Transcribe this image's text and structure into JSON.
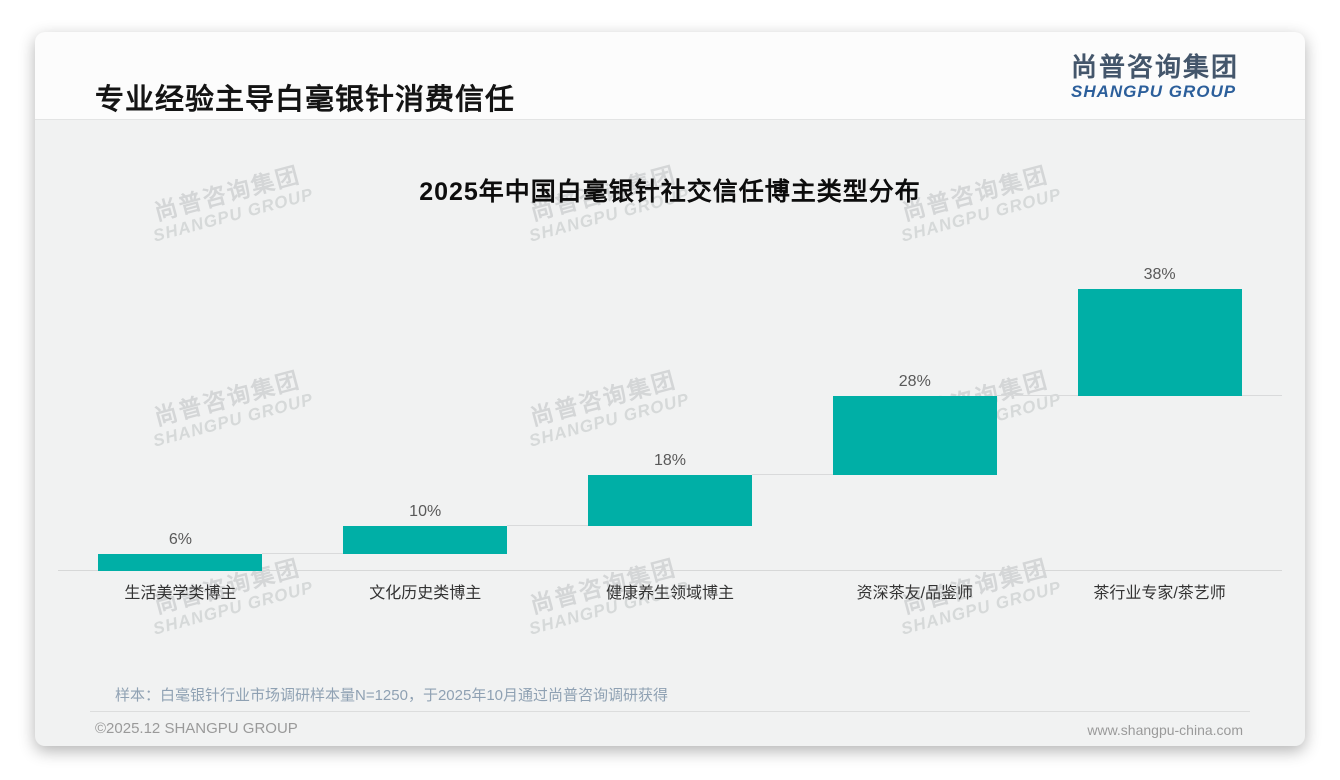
{
  "header": {
    "title": "专业经验主导白毫银针消费信任",
    "logo_cn": "尚普咨询集团",
    "logo_en": "SHANGPU GROUP"
  },
  "watermark": {
    "cn": "尚普咨询集团",
    "en": "SHANGPU GROUP"
  },
  "chart_data": {
    "type": "bar",
    "subtype": "waterfall-step",
    "title": "2025年中国白毫银针社交信任博主类型分布",
    "categories": [
      "生活美学类博主",
      "文化历史类博主",
      "健康养生领域博主",
      "资深茶友/品鉴师",
      "茶行业专家/茶艺师"
    ],
    "values": [
      6,
      10,
      18,
      28,
      38
    ],
    "value_labels": [
      "6%",
      "10%",
      "18%",
      "28%",
      "38%"
    ],
    "cumulative_start": [
      0,
      6,
      16,
      34,
      62
    ],
    "cumulative_end": [
      6,
      16,
      34,
      62,
      100
    ],
    "ylim": [
      0,
      100
    ],
    "bar_color": "#00AFA6",
    "connector_color": "#d9dadb",
    "grid": false,
    "legend": false,
    "xlabel": "",
    "ylabel": ""
  },
  "footer": {
    "note": "样本：白毫银针行业市场调研样本量N=1250，于2025年10月通过尚普咨询调研获得",
    "copyright": "©2025.12 SHANGPU GROUP",
    "website": "www.shangpu-china.com"
  }
}
